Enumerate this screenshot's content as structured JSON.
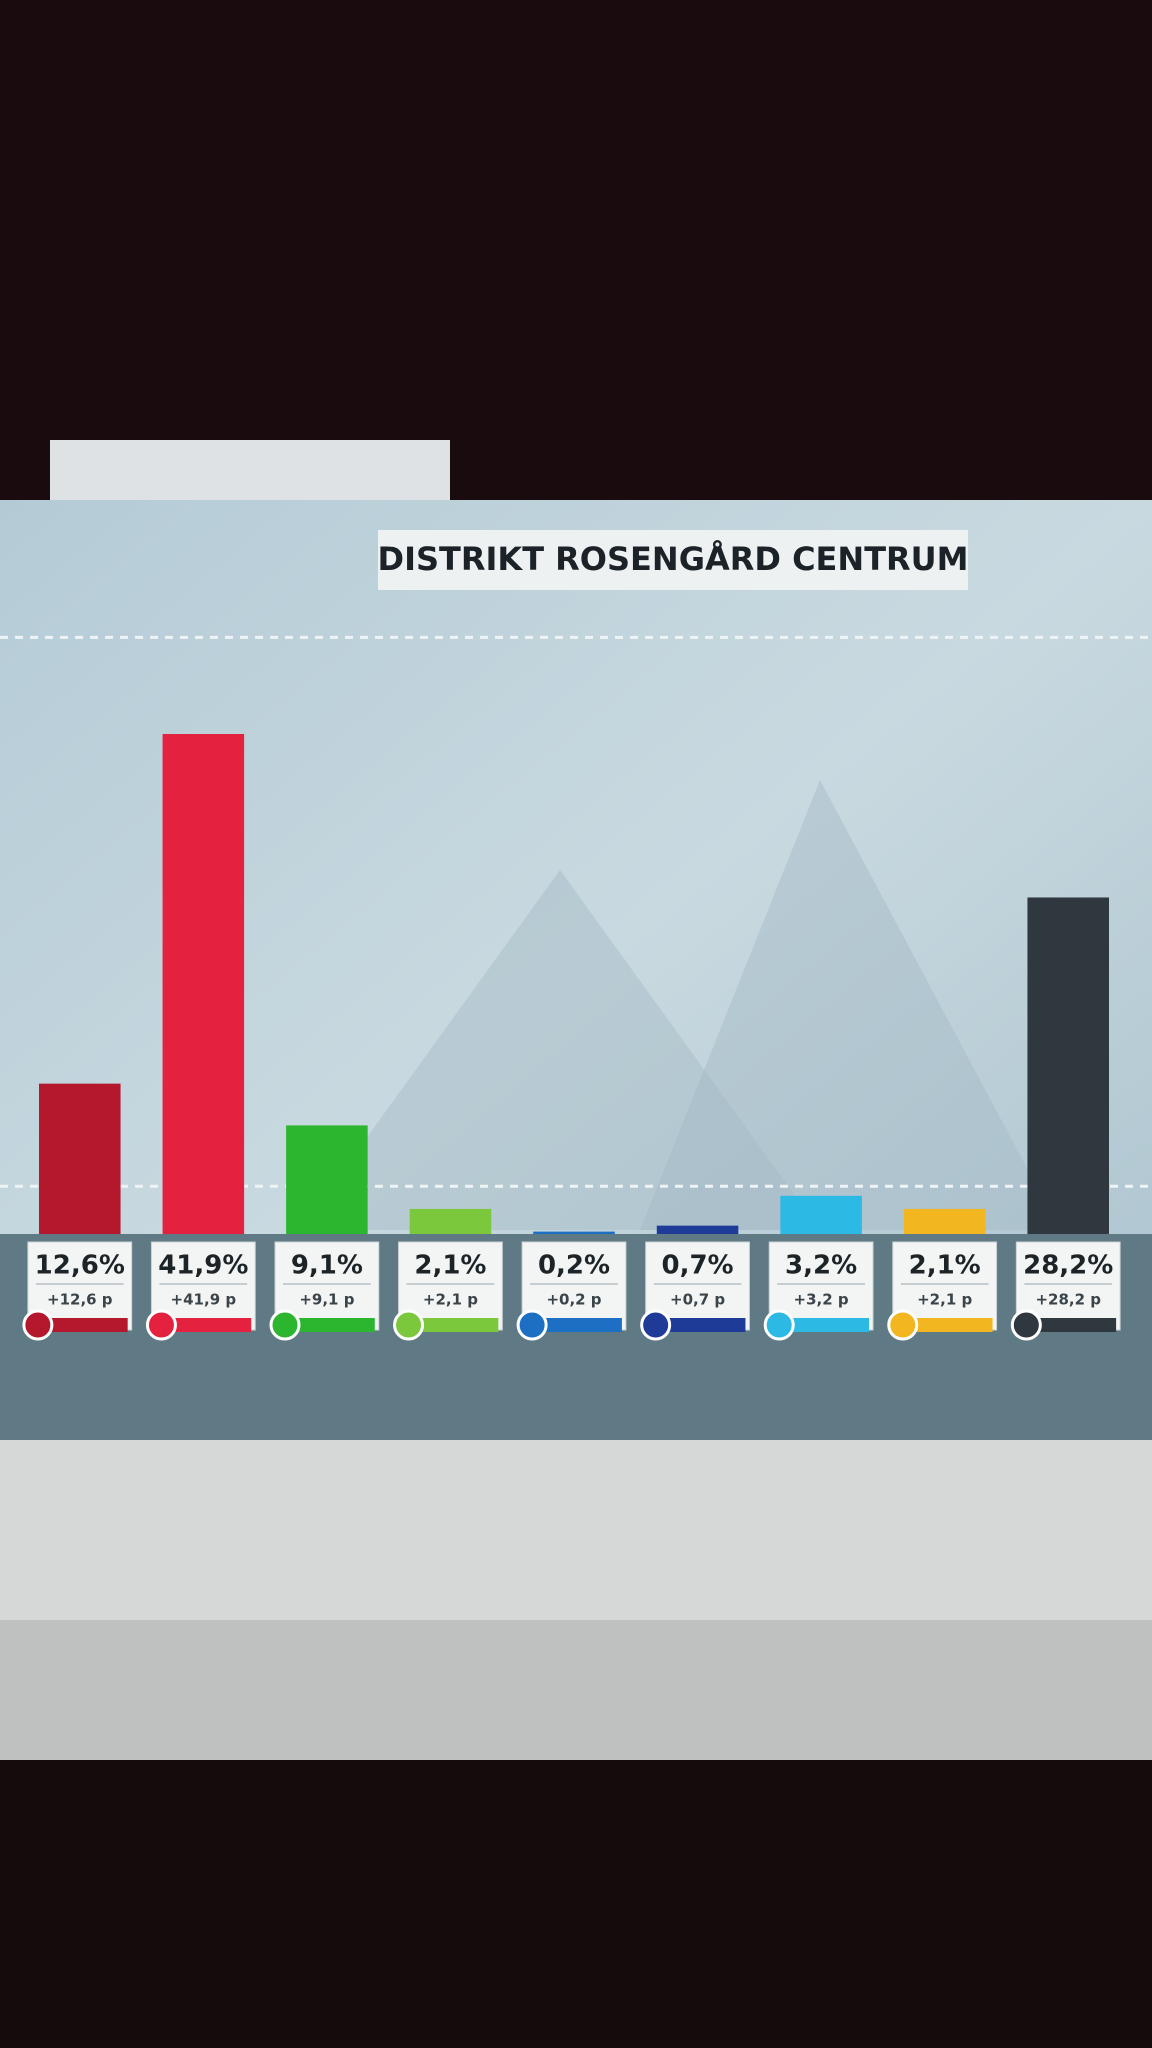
{
  "chart_data": {
    "type": "bar",
    "title": "DISTRIKT ROSENGÅRD CENTRUM",
    "values": [
      12.6,
      41.9,
      9.1,
      2.1,
      0.2,
      0.7,
      3.2,
      2.1,
      28.2
    ],
    "value_labels": [
      "12,6%",
      "41,9%",
      "9,1%",
      "2,1%",
      "0,2%",
      "0,7%",
      "3,2%",
      "2,1%",
      "28,2%"
    ],
    "change_labels": [
      "+12,6 p",
      "+41,9 p",
      "+9,1 p",
      "+2,1 p",
      "+0,2 p",
      "+0,7 p",
      "+3,2 p",
      "+2,1 p",
      "+28,2 p"
    ],
    "colors": [
      "#b3182c",
      "#e4213f",
      "#2cb52e",
      "#7cc83c",
      "#1c6fc2",
      "#1d3b97",
      "#2cb9e4",
      "#f2b620",
      "#2e383e"
    ],
    "ylim": [
      0,
      60
    ],
    "yticks": [
      4,
      50
    ],
    "grid": true
  }
}
